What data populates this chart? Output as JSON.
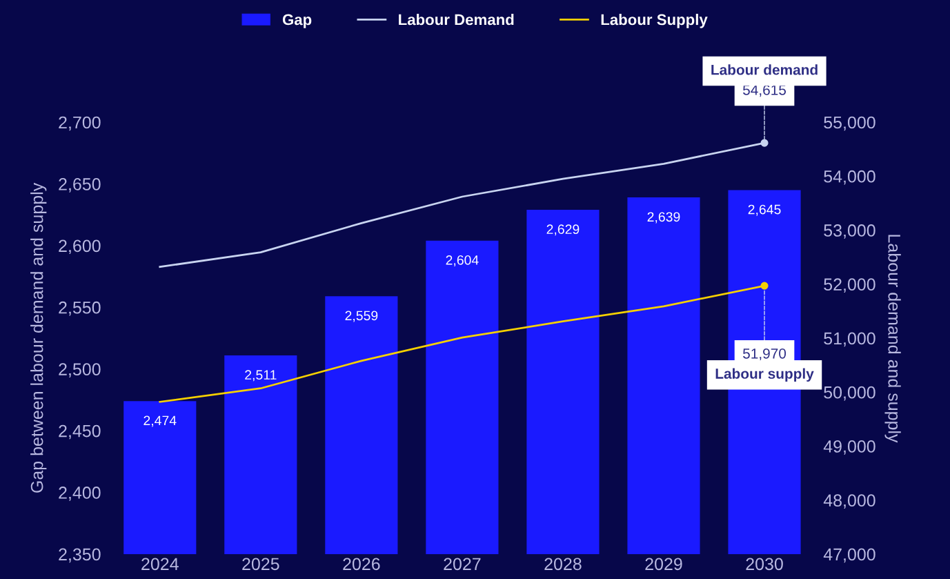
{
  "chart_data": {
    "type": "bar",
    "categories": [
      "2024",
      "2025",
      "2026",
      "2027",
      "2028",
      "2029",
      "2030"
    ],
    "series": [
      {
        "name": "Gap",
        "color": "#1a1aff",
        "values": [
          2474,
          2511,
          2559,
          2604,
          2629,
          2639,
          2645
        ],
        "value_labels": [
          "2,474",
          "2,511",
          "2,559",
          "2,604",
          "2,629",
          "2,639",
          "2,645"
        ]
      },
      {
        "name": "Labour Demand",
        "type": "line",
        "axis": "y2",
        "color": "#c8d4f0",
        "values": [
          52320,
          52590,
          53130,
          53620,
          53950,
          54230,
          54615
        ],
        "value_labels": [
          null,
          null,
          null,
          null,
          null,
          null,
          "54,615"
        ]
      },
      {
        "name": "Labour Supply",
        "type": "line",
        "axis": "y2",
        "color": "#f5d000",
        "values": [
          49820,
          50070,
          50580,
          51010,
          51310,
          51590,
          51970
        ],
        "value_labels": [
          null,
          null,
          null,
          null,
          null,
          null,
          "51,970"
        ]
      }
    ],
    "ylabel": "Gap between labour demand and supply",
    "y2label": "Labour demand and supply",
    "ylim": [
      2350,
      2700
    ],
    "yticks": [
      {
        "value": 2350,
        "label": "2,350"
      },
      {
        "value": 2400,
        "label": "2,400"
      },
      {
        "value": 2450,
        "label": "2,450"
      },
      {
        "value": 2500,
        "label": "2,500"
      },
      {
        "value": 2550,
        "label": "2,550"
      },
      {
        "value": 2600,
        "label": "2,600"
      },
      {
        "value": 2650,
        "label": "2,650"
      },
      {
        "value": 2700,
        "label": "2,700"
      }
    ],
    "y2lim": [
      47000,
      55000
    ],
    "y2ticks": [
      {
        "value": 47000,
        "label": "47,000"
      },
      {
        "value": 48000,
        "label": "48,000"
      },
      {
        "value": 49000,
        "label": "49,000"
      },
      {
        "value": 50000,
        "label": "50,000"
      },
      {
        "value": 51000,
        "label": "51,000"
      },
      {
        "value": 52000,
        "label": "52,000"
      },
      {
        "value": 53000,
        "label": "53,000"
      },
      {
        "value": 54000,
        "label": "54,000"
      },
      {
        "value": 55000,
        "label": "55,000"
      }
    ],
    "annotations": [
      "Labour demand",
      "Labour supply"
    ],
    "line_style": "solid",
    "grid": false,
    "legend": "top"
  }
}
